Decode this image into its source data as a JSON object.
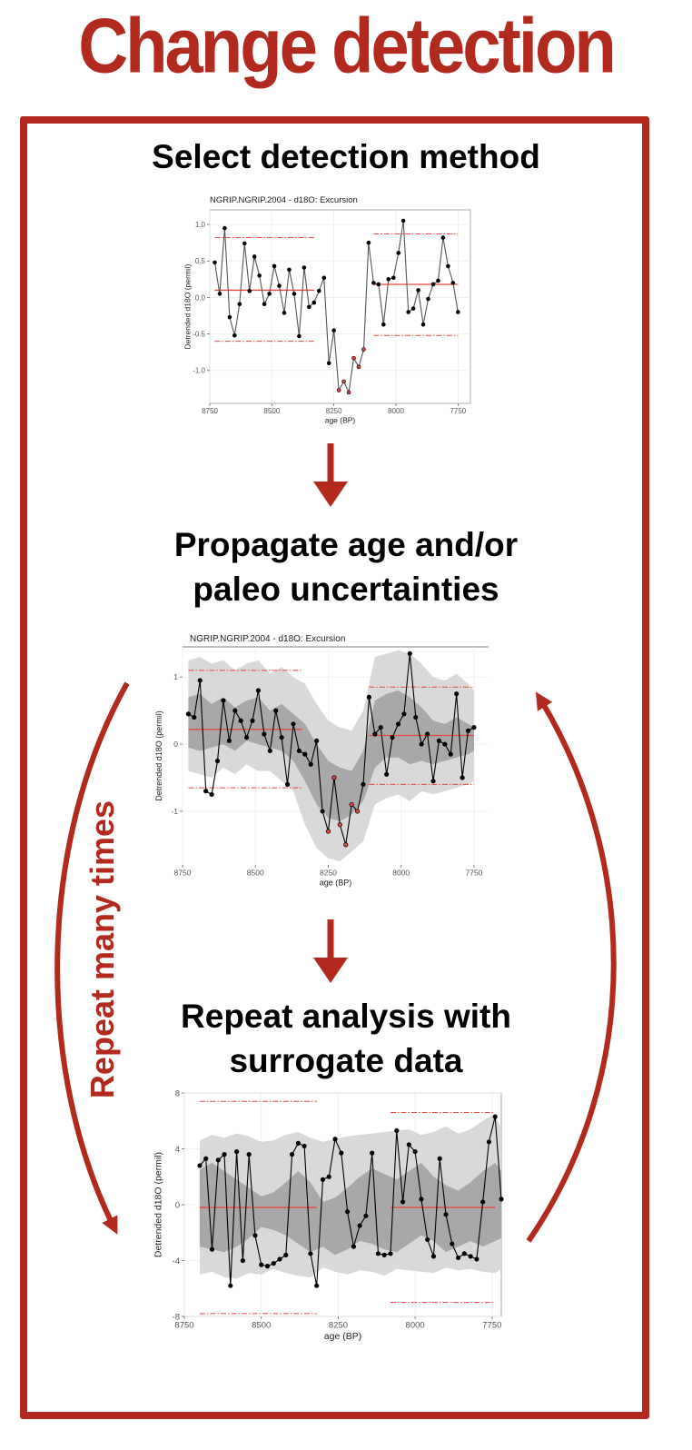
{
  "title": "Change detection",
  "steps": {
    "select": "Select detection method",
    "propagate_1": "Propagate age and/or",
    "propagate_2": "paleo uncertainties",
    "repeat_1": "Repeat analysis with",
    "repeat_2": "surrogate data"
  },
  "loop_label": "Repeat many times",
  "colors": {
    "accent": "#b2291e",
    "series": "#000000",
    "mean_line": "#e8463a",
    "threshold_line": "#e8463a",
    "band_outer": "#d9d9d9",
    "band_inner": "#a8a8a8"
  },
  "chart_data": [
    {
      "type": "line",
      "title": "NGRIP.NGRIP.2004 - d18O: Excursion",
      "xlabel": "age (BP)",
      "ylabel": "Detrended d18O (permil)",
      "xlim": [
        8750,
        7700
      ],
      "ylim": [
        -1.45,
        1.2
      ],
      "xticks": [
        8750,
        8500,
        8250,
        8000,
        7750
      ],
      "yticks": [
        1.0,
        0.5,
        0.0,
        -0.5,
        -1.0
      ],
      "ytick_labels": [
        "1.0",
        "0.5",
        "0.0",
        "-0.5",
        "-1.0"
      ],
      "grid": true,
      "x": [
        8730,
        8710,
        8690,
        8670,
        8650,
        8630,
        8610,
        8590,
        8570,
        8550,
        8530,
        8510,
        8490,
        8470,
        8450,
        8430,
        8410,
        8390,
        8370,
        8350,
        8330,
        8310,
        8290,
        8270,
        8250,
        8230,
        8210,
        8190,
        8170,
        8150,
        8130,
        8110,
        8090,
        8070,
        8050,
        8030,
        8010,
        7990,
        7970,
        7950,
        7930,
        7910,
        7890,
        7870,
        7850,
        7830,
        7810,
        7790,
        7770,
        7750
      ],
      "y": [
        0.48,
        0.05,
        0.95,
        -0.27,
        -0.52,
        -0.09,
        0.74,
        0.09,
        0.56,
        0.3,
        -0.09,
        0.05,
        0.43,
        0.16,
        -0.21,
        0.38,
        0.05,
        -0.53,
        0.41,
        -0.13,
        -0.07,
        0.09,
        0.27,
        -0.9,
        -0.45,
        -1.27,
        -1.15,
        -1.3,
        -0.83,
        -0.95,
        -0.71,
        0.75,
        0.2,
        0.18,
        -0.37,
        0.25,
        0.27,
        0.61,
        1.05,
        -0.2,
        -0.15,
        0.1,
        -0.37,
        -0.02,
        0.18,
        0.23,
        0.82,
        0.43,
        0.2,
        -0.2
      ],
      "highlight_indices": [
        25,
        26,
        27,
        28,
        29,
        30
      ],
      "segments": [
        {
          "x_range": [
            8730,
            8330
          ],
          "mean": 0.1,
          "upper": 0.82,
          "lower": -0.6
        },
        {
          "x_range": [
            8090,
            7750
          ],
          "mean": 0.18,
          "upper": 0.87,
          "lower": -0.52
        }
      ]
    },
    {
      "type": "area",
      "title": "NGRIP.NGRIP.2004 - d18O: Excursion",
      "xlabel": "age (BP)",
      "ylabel": "Detrended d18O (permil)",
      "xlim": [
        8750,
        7700
      ],
      "ylim": [
        -1.8,
        1.45
      ],
      "xticks": [
        8750,
        8500,
        8250,
        8000,
        7750
      ],
      "yticks": [
        1,
        0,
        -1
      ],
      "ytick_labels": [
        "1",
        "0",
        "-1"
      ],
      "grid": true,
      "x": [
        8730,
        8710,
        8690,
        8670,
        8650,
        8630,
        8610,
        8590,
        8570,
        8550,
        8530,
        8510,
        8490,
        8470,
        8450,
        8430,
        8410,
        8390,
        8370,
        8350,
        8330,
        8310,
        8290,
        8270,
        8250,
        8230,
        8210,
        8190,
        8170,
        8150,
        8130,
        8110,
        8090,
        8070,
        8050,
        8030,
        8010,
        7990,
        7970,
        7950,
        7930,
        7910,
        7890,
        7870,
        7850,
        7830,
        7810,
        7790,
        7770,
        7750
      ],
      "y": [
        0.45,
        0.4,
        0.95,
        -0.7,
        -0.75,
        -0.25,
        0.65,
        0.05,
        0.5,
        0.35,
        0.1,
        0.35,
        0.8,
        0.15,
        -0.1,
        0.5,
        0.1,
        -0.6,
        0.3,
        -0.1,
        -0.15,
        -0.3,
        0.05,
        -1.0,
        -1.3,
        -0.5,
        -1.2,
        -1.5,
        -0.9,
        -1.0,
        -0.6,
        0.7,
        0.15,
        0.25,
        -0.45,
        0.1,
        0.3,
        0.45,
        1.35,
        0.4,
        0.0,
        0.15,
        -0.55,
        0.05,
        0.0,
        -0.15,
        0.75,
        -0.5,
        0.2,
        0.25
      ],
      "outer_band": {
        "x": [
          8730,
          8690,
          8650,
          8610,
          8570,
          8530,
          8490,
          8450,
          8410,
          8370,
          8330,
          8290,
          8250,
          8210,
          8170,
          8130,
          8090,
          8050,
          8010,
          7970,
          7930,
          7890,
          7850,
          7810,
          7770,
          7750
        ],
        "upper": [
          1.25,
          1.3,
          1.2,
          1.25,
          1.1,
          1.2,
          1.25,
          1.05,
          1.15,
          1.0,
          0.9,
          0.6,
          0.35,
          0.25,
          0.2,
          0.5,
          1.3,
          1.35,
          1.4,
          1.35,
          1.2,
          1.0,
          0.95,
          1.05,
          0.9,
          0.8
        ],
        "lower": [
          -0.4,
          -0.45,
          -0.5,
          -0.35,
          -0.45,
          -0.3,
          -0.4,
          -0.4,
          -0.55,
          -0.7,
          -1.2,
          -1.55,
          -1.7,
          -1.75,
          -1.6,
          -1.45,
          -0.9,
          -0.8,
          -0.75,
          -0.85,
          -0.7,
          -0.75,
          -0.7,
          -0.65,
          -0.6,
          -0.55
        ]
      },
      "inner_band": {
        "x": [
          8730,
          8690,
          8650,
          8610,
          8570,
          8530,
          8490,
          8450,
          8410,
          8370,
          8330,
          8290,
          8250,
          8210,
          8170,
          8130,
          8090,
          8050,
          8010,
          7970,
          7930,
          7890,
          7850,
          7810,
          7770,
          7750
        ],
        "upper": [
          0.7,
          0.75,
          0.6,
          0.7,
          0.55,
          0.65,
          0.7,
          0.5,
          0.6,
          0.45,
          0.3,
          0.0,
          -0.25,
          -0.35,
          -0.4,
          -0.1,
          0.65,
          0.75,
          0.8,
          0.7,
          0.55,
          0.35,
          0.3,
          0.4,
          0.3,
          0.25
        ],
        "lower": [
          -0.05,
          -0.1,
          -0.05,
          0.0,
          -0.1,
          0.05,
          0.0,
          -0.05,
          -0.1,
          -0.25,
          -0.55,
          -0.9,
          -1.1,
          -1.15,
          -1.05,
          -0.85,
          -0.35,
          -0.2,
          -0.2,
          -0.3,
          -0.25,
          -0.3,
          -0.25,
          -0.2,
          -0.15,
          -0.1
        ]
      },
      "highlight_indices": [
        24,
        25,
        26,
        27,
        28,
        29
      ],
      "segments": [
        {
          "x_range": [
            8730,
            8340
          ],
          "mean": 0.22,
          "upper": 1.1,
          "lower": -0.65
        },
        {
          "x_range": [
            8110,
            7750
          ],
          "mean": 0.13,
          "upper": 0.85,
          "lower": -0.6
        }
      ]
    },
    {
      "type": "area",
      "title": "",
      "xlabel": "age (BP)",
      "ylabel": "Detrended d18O (permil)",
      "xlim": [
        8750,
        7720
      ],
      "ylim": [
        -8,
        8
      ],
      "xticks": [
        8750,
        8500,
        8250,
        8000,
        7750
      ],
      "yticks": [
        8,
        4,
        0,
        -4,
        -8
      ],
      "ytick_labels": [
        "8",
        "4",
        "0",
        "-4",
        "-8"
      ],
      "grid": true,
      "x": [
        8700,
        8680,
        8660,
        8640,
        8620,
        8600,
        8580,
        8560,
        8540,
        8520,
        8500,
        8480,
        8460,
        8440,
        8420,
        8400,
        8380,
        8360,
        8340,
        8320,
        8300,
        8280,
        8260,
        8240,
        8220,
        8200,
        8180,
        8160,
        8140,
        8120,
        8100,
        8080,
        8060,
        8040,
        8020,
        8000,
        7980,
        7960,
        7940,
        7920,
        7900,
        7880,
        7860,
        7840,
        7820,
        7800,
        7780,
        7760,
        7740,
        7720
      ],
      "y": [
        2.8,
        3.3,
        -3.2,
        3.2,
        3.6,
        -5.8,
        3.8,
        -4.0,
        3.6,
        -2.2,
        -4.3,
        -4.4,
        -4.2,
        -3.9,
        -3.6,
        3.6,
        4.4,
        4.2,
        -3.5,
        -5.8,
        1.8,
        2.0,
        4.7,
        3.7,
        -0.5,
        -3.0,
        -1.5,
        -0.8,
        3.7,
        -3.5,
        -3.6,
        -3.5,
        5.3,
        0.2,
        4.3,
        3.8,
        0.4,
        -2.5,
        -3.7,
        3.3,
        -0.7,
        -2.8,
        -3.8,
        -3.5,
        -3.7,
        -3.9,
        0.2,
        4.5,
        6.3,
        0.4
      ],
      "outer_band": {
        "x": [
          8700,
          8660,
          8620,
          8580,
          8540,
          8500,
          8460,
          8420,
          8380,
          8340,
          8300,
          8260,
          8220,
          8180,
          8140,
          8100,
          8060,
          8020,
          7980,
          7940,
          7900,
          7860,
          7820,
          7780,
          7740,
          7720
        ],
        "upper": [
          4.6,
          5.0,
          4.8,
          5.1,
          4.9,
          4.5,
          4.6,
          5.0,
          5.2,
          4.8,
          4.5,
          4.7,
          4.9,
          5.0,
          5.1,
          5.2,
          5.3,
          5.4,
          5.0,
          5.2,
          5.6,
          5.1,
          5.4,
          6.0,
          6.5,
          5.4
        ],
        "lower": [
          -5.0,
          -4.8,
          -5.2,
          -5.3,
          -4.9,
          -5.0,
          -4.6,
          -4.9,
          -5.1,
          -5.2,
          -4.5,
          -4.8,
          -5.0,
          -4.7,
          -4.8,
          -5.1,
          -4.6,
          -4.7,
          -4.8,
          -4.9,
          -4.5,
          -4.7,
          -4.6,
          -4.8,
          -4.9,
          -4.6
        ]
      },
      "inner_band": {
        "x": [
          8700,
          8660,
          8620,
          8580,
          8540,
          8500,
          8460,
          8420,
          8380,
          8340,
          8300,
          8260,
          8220,
          8180,
          8140,
          8100,
          8060,
          8020,
          7980,
          7940,
          7900,
          7860,
          7820,
          7780,
          7740,
          7720
        ],
        "upper": [
          2.5,
          3.0,
          2.4,
          1.8,
          1.2,
          0.6,
          0.9,
          1.6,
          2.4,
          1.6,
          0.2,
          0.5,
          1.2,
          2.0,
          2.6,
          2.2,
          1.8,
          2.4,
          3.0,
          2.0,
          1.4,
          1.0,
          1.6,
          2.4,
          3.0,
          2.4
        ],
        "lower": [
          -3.0,
          -3.2,
          -3.4,
          -3.0,
          -2.4,
          -1.6,
          -1.8,
          -2.2,
          -2.8,
          -3.4,
          -3.0,
          -3.6,
          -3.2,
          -2.6,
          -2.8,
          -3.2,
          -3.4,
          -2.8,
          -2.2,
          -2.6,
          -3.4,
          -3.0,
          -2.6,
          -3.0,
          -2.6,
          -2.4
        ]
      },
      "highlight_indices": [],
      "segments": [
        {
          "x_range": [
            8700,
            8320
          ],
          "mean": -0.2,
          "upper": 7.4,
          "lower": -7.8
        },
        {
          "x_range": [
            8080,
            7740
          ],
          "mean": -0.2,
          "upper": 6.6,
          "lower": -7.0
        }
      ]
    }
  ]
}
